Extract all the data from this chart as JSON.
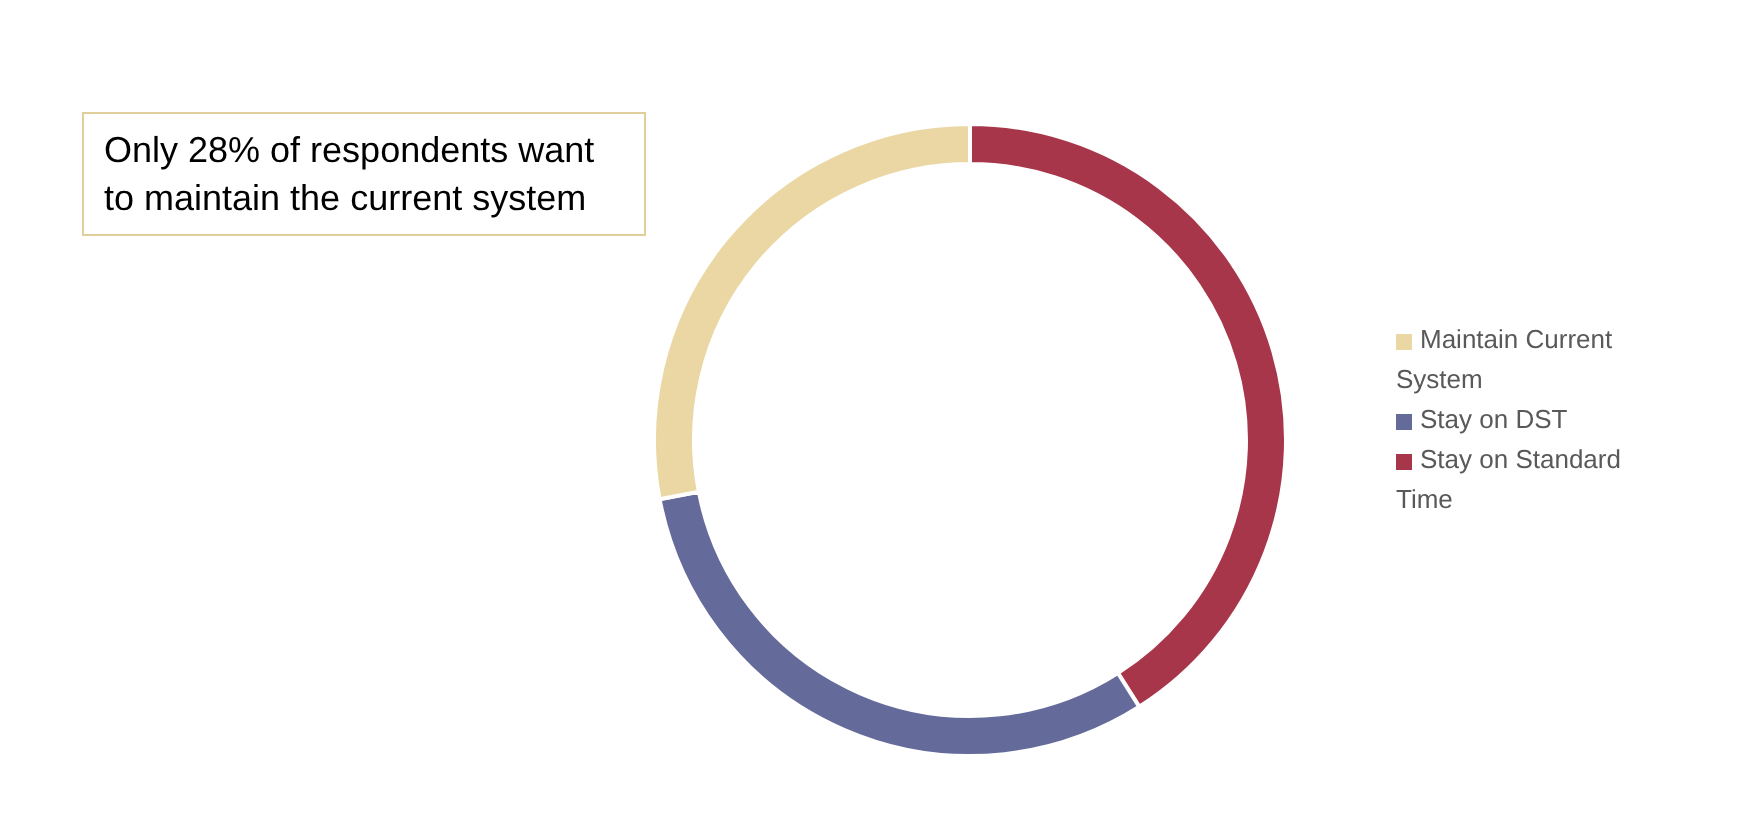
{
  "chart_data": {
    "type": "donut",
    "categories": [
      "Stay on Standard Time",
      "Stay on DST",
      "Maintain Current System"
    ],
    "values": [
      41,
      31,
      28
    ],
    "colors": [
      "#a8364a",
      "#646b9a",
      "#ead7a4"
    ],
    "legend": "right",
    "annotations": [
      "Only 28% of respondents want to maintain the current system"
    ]
  }
}
